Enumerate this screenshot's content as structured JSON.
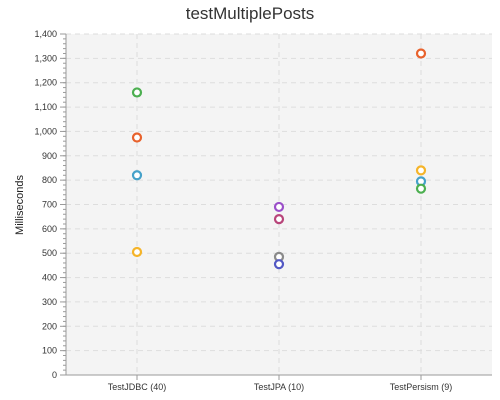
{
  "chart_data": {
    "type": "scatter",
    "title": "testMultiplePosts",
    "xlabel": "",
    "ylabel": "Milliseconds",
    "categories": [
      "TestJDBC (40)",
      "TestJPA (10)",
      "TestPersism (9)"
    ],
    "ylim": [
      0,
      1400
    ],
    "ytick_step": 100,
    "grid": true,
    "legend": "none",
    "points": [
      {
        "category": "TestJDBC (40)",
        "value": 1160,
        "color": "#4caf50"
      },
      {
        "category": "TestJDBC (40)",
        "value": 975,
        "color": "#e8622c"
      },
      {
        "category": "TestJDBC (40)",
        "value": 820,
        "color": "#45a1c9"
      },
      {
        "category": "TestJDBC (40)",
        "value": 505,
        "color": "#f5b429"
      },
      {
        "category": "TestJPA (10)",
        "value": 690,
        "color": "#9b4fc9"
      },
      {
        "category": "TestJPA (10)",
        "value": 640,
        "color": "#b8457a"
      },
      {
        "category": "TestJPA (10)",
        "value": 485,
        "color": "#8a8a8a"
      },
      {
        "category": "TestJPA (10)",
        "value": 455,
        "color": "#5258c4"
      },
      {
        "category": "TestPersism (9)",
        "value": 1320,
        "color": "#e8622c"
      },
      {
        "category": "TestPersism (9)",
        "value": 840,
        "color": "#f5b429"
      },
      {
        "category": "TestPersism (9)",
        "value": 795,
        "color": "#45a1c9"
      },
      {
        "category": "TestPersism (9)",
        "value": 765,
        "color": "#4caf50"
      }
    ]
  }
}
